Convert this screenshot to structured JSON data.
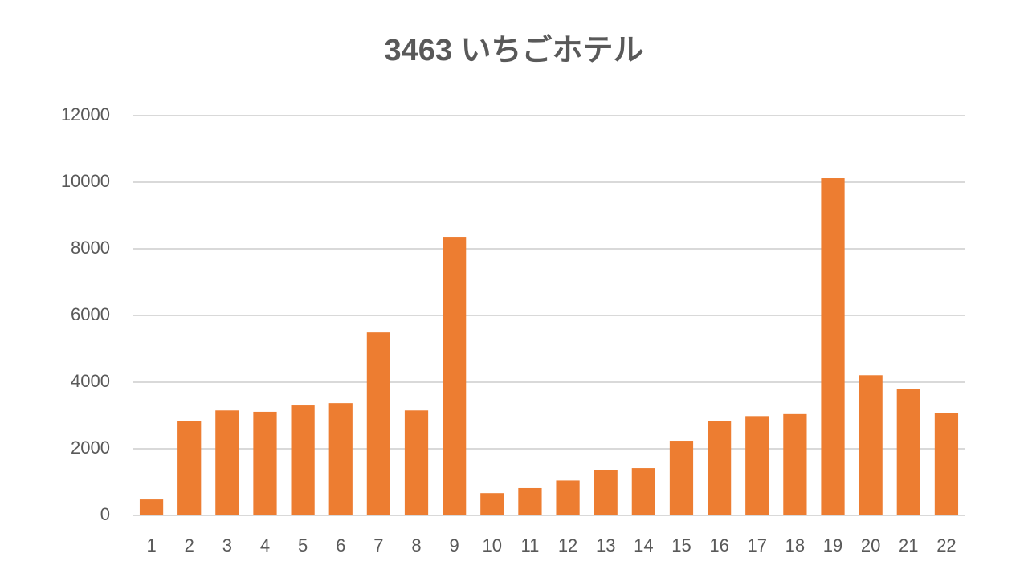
{
  "chart_data": {
    "type": "bar",
    "title": "3463 いちごホテル",
    "categories": [
      1,
      2,
      3,
      4,
      5,
      6,
      7,
      8,
      9,
      10,
      11,
      12,
      13,
      14,
      15,
      16,
      17,
      18,
      19,
      20,
      21,
      22
    ],
    "values": [
      480,
      2830,
      3150,
      3110,
      3300,
      3370,
      5490,
      3150,
      8360,
      670,
      820,
      1050,
      1350,
      1420,
      2240,
      2840,
      2980,
      3040,
      10120,
      4210,
      3790,
      3070
    ],
    "color": "#ed7d31",
    "ylim": [
      0,
      12000
    ],
    "yticks": [
      0,
      2000,
      4000,
      6000,
      8000,
      10000,
      12000
    ],
    "grid": true
  }
}
